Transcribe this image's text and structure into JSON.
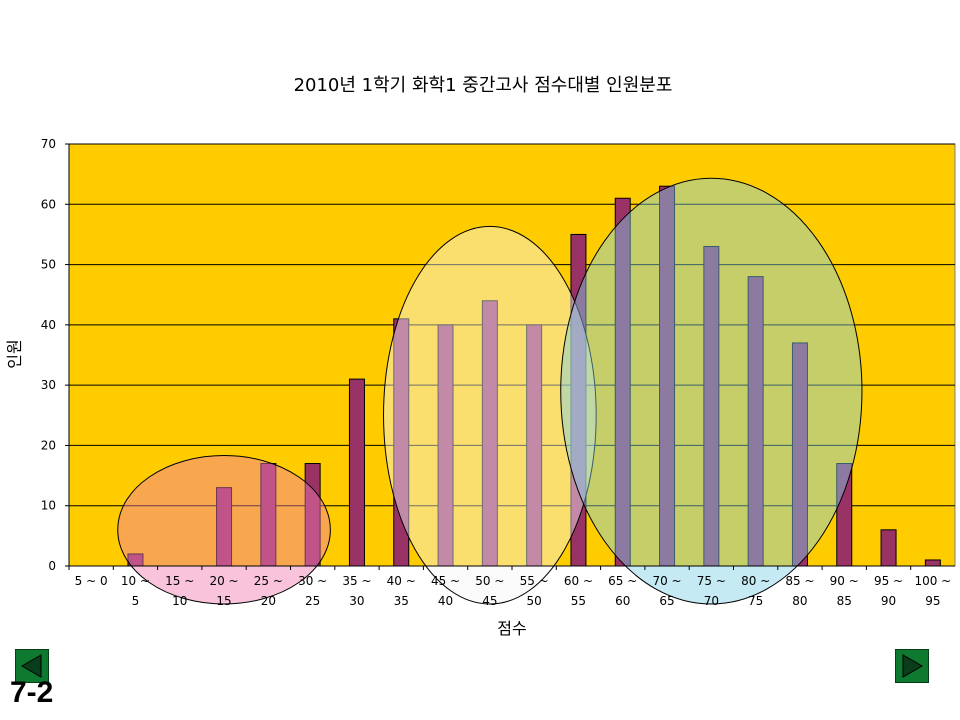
{
  "chart_data": {
    "type": "bar",
    "title": "2010년 1학기 화학1 중간고사 점수대별 인원분포",
    "xlabel": "점수",
    "ylabel": "인원",
    "ylim": [
      0,
      70
    ],
    "y_ticks": [
      "0",
      "10",
      "20",
      "30",
      "40",
      "50",
      "60",
      "70"
    ],
    "grid": true,
    "legend": "none",
    "categories": [
      {
        "top": "5 ~ 0",
        "bottom": ""
      },
      {
        "top": "10 ~",
        "bottom": "5"
      },
      {
        "top": "15 ~",
        "bottom": "10"
      },
      {
        "top": "20 ~",
        "bottom": "15"
      },
      {
        "top": "25 ~",
        "bottom": "20"
      },
      {
        "top": "30 ~",
        "bottom": "25"
      },
      {
        "top": "35 ~",
        "bottom": "30"
      },
      {
        "top": "40 ~",
        "bottom": "35"
      },
      {
        "top": "45 ~",
        "bottom": "40"
      },
      {
        "top": "50 ~",
        "bottom": "45"
      },
      {
        "top": "55 ~",
        "bottom": "50"
      },
      {
        "top": "60 ~",
        "bottom": "55"
      },
      {
        "top": "65 ~",
        "bottom": "60"
      },
      {
        "top": "70 ~",
        "bottom": "65"
      },
      {
        "top": "75 ~",
        "bottom": "70"
      },
      {
        "top": "80 ~",
        "bottom": "75"
      },
      {
        "top": "85 ~",
        "bottom": "80"
      },
      {
        "top": "90 ~",
        "bottom": "85"
      },
      {
        "top": "95 ~",
        "bottom": "90"
      },
      {
        "top": "100 ~",
        "bottom": "95"
      }
    ],
    "values": [
      0,
      2,
      0,
      13,
      17,
      17,
      31,
      41,
      40,
      44,
      40,
      55,
      61,
      63,
      53,
      48,
      37,
      17,
      6,
      1
    ],
    "colors": {
      "plot_background": "#ffcc00",
      "bar": "#993366",
      "grid": "#000000"
    },
    "highlight_groups": [
      {
        "name": "low",
        "color": "#f07ab0",
        "from_category": 1,
        "to_category": 5
      },
      {
        "name": "middle",
        "color": "#f4f4f4",
        "from_category": 7,
        "to_category": 11
      },
      {
        "name": "high",
        "color": "#7fd0e6",
        "from_category": 11,
        "to_category": 17
      }
    ]
  },
  "navigation": {
    "prev_icon": "left-triangle",
    "next_icon": "right-triangle",
    "slide_label": "7-2"
  }
}
